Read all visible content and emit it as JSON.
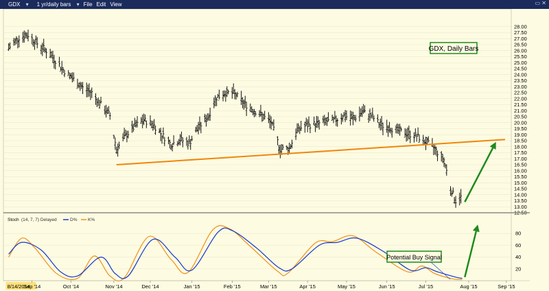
{
  "toolbar": {
    "symbol": "GDX",
    "period": "1 yr/daily bars",
    "menu_file": "File",
    "menu_edit": "Edit",
    "menu_view": "View",
    "window_controls": "▭ ✕"
  },
  "chart_data": [
    {
      "type": "ohlc",
      "title": "GDX, Daily Bars",
      "ylim": [
        12.5,
        28.5
      ],
      "yticks": [
        "28.00",
        "27.50",
        "27.00",
        "26.50",
        "26.00",
        "25.50",
        "25.00",
        "24.50",
        "24.00",
        "23.50",
        "23.00",
        "22.50",
        "22.00",
        "21.50",
        "21.00",
        "20.50",
        "20.00",
        "19.50",
        "19.00",
        "18.50",
        "18.00",
        "17.50",
        "17.00",
        "16.50",
        "16.00",
        "15.50",
        "15.00",
        "14.50",
        "14.00",
        "13.50",
        "13.00",
        "12.50"
      ],
      "price_path": [
        [
          "2014-08-14",
          26.2
        ],
        [
          "2014-08-22",
          27.1
        ],
        [
          "2014-08-29",
          27.3
        ],
        [
          "2014-09-05",
          26.6
        ],
        [
          "2014-09-12",
          26.0
        ],
        [
          "2014-09-19",
          25.2
        ],
        [
          "2014-09-26",
          24.3
        ],
        [
          "2014-10-03",
          23.6
        ],
        [
          "2014-10-10",
          22.9
        ],
        [
          "2014-10-17",
          22.5
        ],
        [
          "2014-10-24",
          21.5
        ],
        [
          "2014-10-31",
          20.6
        ],
        [
          "2014-11-05",
          17.8
        ],
        [
          "2014-11-12",
          18.9
        ],
        [
          "2014-11-19",
          19.7
        ],
        [
          "2014-11-26",
          20.2
        ],
        [
          "2014-12-03",
          19.9
        ],
        [
          "2014-12-10",
          19.0
        ],
        [
          "2014-12-17",
          18.2
        ],
        [
          "2014-12-24",
          18.6
        ],
        [
          "2014-12-31",
          18.3
        ],
        [
          "2015-01-07",
          19.6
        ],
        [
          "2015-01-14",
          20.4
        ],
        [
          "2015-01-21",
          22.1
        ],
        [
          "2015-01-28",
          22.5
        ],
        [
          "2015-02-04",
          22.4
        ],
        [
          "2015-02-11",
          21.6
        ],
        [
          "2015-02-18",
          21.1
        ],
        [
          "2015-02-25",
          20.6
        ],
        [
          "2015-03-04",
          20.0
        ],
        [
          "2015-03-11",
          17.8
        ],
        [
          "2015-03-18",
          17.9
        ],
        [
          "2015-03-25",
          19.5
        ],
        [
          "2015-04-01",
          19.8
        ],
        [
          "2015-04-08",
          19.9
        ],
        [
          "2015-04-15",
          20.1
        ],
        [
          "2015-04-22",
          20.2
        ],
        [
          "2015-04-29",
          20.6
        ],
        [
          "2015-05-06",
          20.3
        ],
        [
          "2015-05-13",
          20.9
        ],
        [
          "2015-05-20",
          20.6
        ],
        [
          "2015-05-27",
          19.8
        ],
        [
          "2015-06-03",
          19.6
        ],
        [
          "2015-06-10",
          19.3
        ],
        [
          "2015-06-17",
          19.1
        ],
        [
          "2015-06-24",
          18.9
        ],
        [
          "2015-07-01",
          18.4
        ],
        [
          "2015-07-08",
          17.8
        ],
        [
          "2015-07-15",
          16.9
        ],
        [
          "2015-07-20",
          14.6
        ],
        [
          "2015-07-24",
          13.5
        ],
        [
          "2015-07-28",
          13.8
        ]
      ],
      "trendline": {
        "color": "#f0860a",
        "from": [
          "2014-11-05",
          16.5
        ],
        "to": [
          "2015-08-31",
          18.6
        ]
      },
      "arrow": {
        "color": "#1f8a1f",
        "from": [
          "2015-07-31",
          13.4
        ],
        "to": [
          "2015-08-24",
          18.4
        ]
      }
    },
    {
      "type": "line",
      "indicator": "Stoch",
      "params": "(14, 7, 7) Delayed",
      "legend": [
        "D%",
        "K%"
      ],
      "ylim": [
        0,
        100
      ],
      "yticks": [
        "80",
        "60",
        "40",
        "20"
      ],
      "series": [
        {
          "name": "D%",
          "color": "#1538c8",
          "points": [
            [
              "2014-08-14",
              45
            ],
            [
              "2014-08-24",
              65
            ],
            [
              "2014-09-08",
              52
            ],
            [
              "2014-09-23",
              15
            ],
            [
              "2014-10-06",
              8
            ],
            [
              "2014-10-24",
              40
            ],
            [
              "2014-11-04",
              12
            ],
            [
              "2014-11-14",
              8
            ],
            [
              "2014-12-03",
              70
            ],
            [
              "2014-12-20",
              40
            ],
            [
              "2015-01-02",
              18
            ],
            [
              "2015-01-22",
              82
            ],
            [
              "2015-02-02",
              85
            ],
            [
              "2015-02-21",
              55
            ],
            [
              "2015-03-10",
              22
            ],
            [
              "2015-03-20",
              20
            ],
            [
              "2015-04-10",
              60
            ],
            [
              "2015-04-24",
              65
            ],
            [
              "2015-05-09",
              72
            ],
            [
              "2015-05-29",
              50
            ],
            [
              "2015-06-19",
              18
            ],
            [
              "2015-07-01",
              22
            ],
            [
              "2015-07-10",
              15
            ],
            [
              "2015-07-24",
              6
            ],
            [
              "2015-07-29",
              4
            ]
          ]
        },
        {
          "name": "K%",
          "color": "#f09018",
          "points": [
            [
              "2014-08-14",
              40
            ],
            [
              "2014-08-24",
              72
            ],
            [
              "2014-09-03",
              56
            ],
            [
              "2014-09-20",
              12
            ],
            [
              "2014-10-06",
              4
            ],
            [
              "2014-10-19",
              42
            ],
            [
              "2014-10-31",
              8
            ],
            [
              "2014-11-11",
              5
            ],
            [
              "2014-11-30",
              75
            ],
            [
              "2014-12-17",
              36
            ],
            [
              "2014-12-30",
              14
            ],
            [
              "2015-01-18",
              86
            ],
            [
              "2015-01-31",
              88
            ],
            [
              "2015-02-16",
              58
            ],
            [
              "2015-03-09",
              16
            ],
            [
              "2015-03-17",
              13
            ],
            [
              "2015-04-07",
              64
            ],
            [
              "2015-04-20",
              66
            ],
            [
              "2015-05-06",
              76
            ],
            [
              "2015-05-24",
              48
            ],
            [
              "2015-06-17",
              15
            ],
            [
              "2015-06-28",
              25
            ],
            [
              "2015-07-08",
              12
            ],
            [
              "2015-07-22",
              3
            ],
            [
              "2015-07-29",
              2
            ]
          ]
        }
      ],
      "arrow": {
        "color": "#1f8a1f",
        "from": [
          "2015-07-31",
          6
        ],
        "to": [
          "2015-08-10",
          95
        ]
      }
    }
  ],
  "xaxis": {
    "labels": [
      {
        "label": "8/14/2014",
        "date": "2014-08-14",
        "highlight": true
      },
      {
        "label": "Sep '14",
        "date": "2014-09-01"
      },
      {
        "label": "Oct '14",
        "date": "2014-10-01"
      },
      {
        "label": "Nov '14",
        "date": "2014-11-03"
      },
      {
        "label": "Dec '14",
        "date": "2014-12-01"
      },
      {
        "label": "Jan '15",
        "date": "2015-01-02"
      },
      {
        "label": "Feb '15",
        "date": "2015-02-02"
      },
      {
        "label": "Mar '15",
        "date": "2015-03-02"
      },
      {
        "label": "Apr '15",
        "date": "2015-04-01"
      },
      {
        "label": "May '15",
        "date": "2015-05-01"
      },
      {
        "label": "Jun '15",
        "date": "2015-06-01"
      },
      {
        "label": "Jul '15",
        "date": "2015-07-01"
      },
      {
        "label": "Aug '15",
        "date": "2015-08-03"
      },
      {
        "label": "Sep '15",
        "date": "2015-09-01"
      }
    ],
    "range": [
      "2014-08-10",
      "2015-09-19"
    ]
  },
  "annotations": {
    "title_box": "GDX, Daily Bars",
    "buy_signal": "Potential Buy Signal"
  },
  "colors": {
    "background": "#fdfbe2",
    "toolbar": "#1a2b5c",
    "label_border": "#1f8a1f",
    "highlight": "#ffe07a"
  }
}
